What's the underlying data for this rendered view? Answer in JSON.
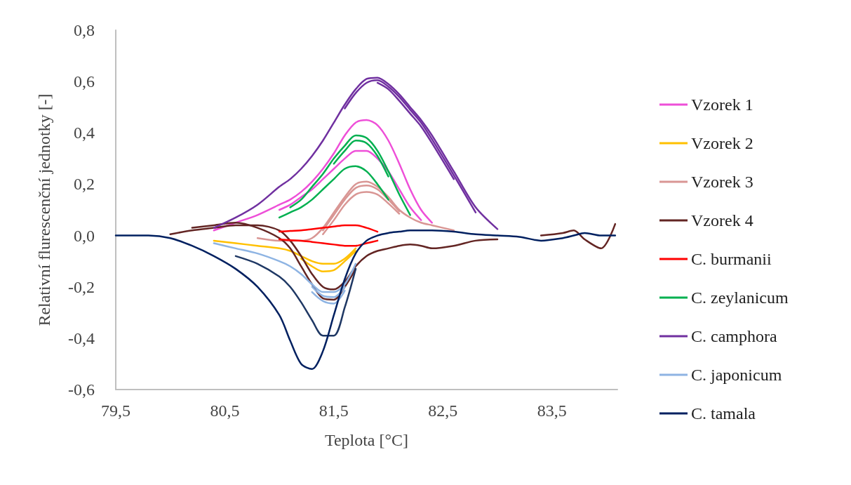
{
  "chart_data": {
    "type": "line",
    "xlabel": "Teplota [°C]",
    "ylabel": "Relativní flurescenční jednotky [-]",
    "xlim": [
      79.5,
      84.1
    ],
    "xticks": [
      {
        "value": 79.5,
        "label": "79,5"
      },
      {
        "value": 80.5,
        "label": "80,5"
      },
      {
        "value": 81.5,
        "label": "81,5"
      },
      {
        "value": 82.5,
        "label": "82,5"
      },
      {
        "value": 83.5,
        "label": "83,5"
      }
    ],
    "ylim": [
      -0.6,
      0.8
    ],
    "yticks": [
      {
        "value": -0.6,
        "label": "-0,6"
      },
      {
        "value": -0.4,
        "label": "-0,4"
      },
      {
        "value": -0.2,
        "label": "-0,2"
      },
      {
        "value": 0,
        "label": "0,0"
      },
      {
        "value": 0.2,
        "label": "0,2"
      },
      {
        "value": 0.4,
        "label": "0,4"
      },
      {
        "value": 0.6,
        "label": "0,6"
      },
      {
        "value": 0.8,
        "label": "0,8"
      }
    ],
    "grid": false,
    "legend": "right",
    "marker": "none",
    "line_style": "solid",
    "x": [
      79.5,
      79.8,
      80.0,
      80.2,
      80.4,
      80.6,
      80.8,
      81.0,
      81.1,
      81.2,
      81.3,
      81.4,
      81.5,
      81.6,
      81.7,
      81.8,
      81.9,
      82.0,
      82.1,
      82.2,
      82.3,
      82.4,
      82.6,
      82.8,
      83.0,
      83.2,
      83.4,
      83.6,
      83.7,
      83.8,
      83.95,
      84.08
    ],
    "series": [
      {
        "name": "Vzorek 1",
        "color": "#ee4fd8",
        "values": [
          null,
          null,
          null,
          null,
          0.02,
          0.05,
          0.08,
          0.12,
          0.14,
          0.17,
          0.21,
          0.26,
          0.32,
          0.39,
          0.44,
          0.45,
          0.43,
          0.37,
          0.28,
          0.18,
          0.1,
          0.05,
          null,
          null,
          null,
          null,
          null,
          null,
          null,
          null,
          null,
          null
        ]
      },
      {
        "color": "#ee4fd8",
        "values": [
          null,
          null,
          null,
          null,
          null,
          null,
          null,
          0.1,
          0.12,
          0.15,
          0.18,
          0.22,
          0.26,
          0.3,
          0.33,
          0.33,
          0.3,
          0.25,
          0.18,
          0.11,
          0.06,
          null,
          null,
          null,
          null,
          null,
          null,
          null,
          null,
          null,
          null,
          null
        ]
      },
      {
        "name": "Vzorek 2",
        "color": "#ffc000",
        "values": [
          null,
          null,
          null,
          null,
          -0.02,
          -0.03,
          -0.04,
          -0.05,
          -0.06,
          -0.08,
          -0.1,
          -0.11,
          -0.11,
          -0.09,
          -0.05,
          null,
          null,
          null,
          null,
          null,
          null,
          null,
          null,
          null,
          null,
          null,
          null,
          null,
          null,
          null,
          null,
          null
        ]
      },
      {
        "color": "#ffc000",
        "values": [
          null,
          null,
          null,
          null,
          null,
          null,
          null,
          null,
          null,
          -0.09,
          -0.12,
          -0.14,
          -0.135,
          -0.1,
          -0.06,
          null,
          null,
          null,
          null,
          null,
          null,
          null,
          null,
          null,
          null,
          null,
          null,
          null,
          null,
          null,
          null,
          null
        ]
      },
      {
        "name": "Vzorek 3",
        "color": "#d99694",
        "values": [
          null,
          null,
          null,
          null,
          null,
          null,
          -0.01,
          -0.02,
          -0.02,
          -0.02,
          -0.01,
          0.03,
          0.09,
          0.15,
          0.2,
          0.21,
          0.19,
          0.15,
          0.1,
          0.07,
          0.05,
          0.04,
          0.02,
          null,
          null,
          null,
          null,
          null,
          null,
          null,
          null,
          null
        ]
      },
      {
        "color": "#d99694",
        "values": [
          null,
          null,
          null,
          null,
          null,
          null,
          null,
          null,
          null,
          null,
          null,
          0.02,
          0.08,
          0.14,
          0.185,
          0.195,
          0.18,
          0.14,
          0.095,
          null,
          null,
          null,
          null,
          null,
          null,
          null,
          null,
          null,
          null,
          null,
          null,
          null
        ]
      },
      {
        "color": "#d99694",
        "values": [
          null,
          null,
          null,
          null,
          null,
          null,
          null,
          null,
          null,
          null,
          null,
          0.005,
          0.06,
          0.12,
          0.16,
          0.17,
          0.16,
          0.125,
          0.085,
          null,
          null,
          null,
          null,
          null,
          null,
          null,
          null,
          null,
          null,
          null,
          null,
          null
        ]
      },
      {
        "name": "Vzorek 4",
        "color": "#632523",
        "values": [
          null,
          null,
          0.005,
          0.02,
          0.03,
          0.04,
          0.04,
          0.02,
          -0.02,
          -0.08,
          -0.15,
          -0.2,
          -0.21,
          -0.18,
          -0.12,
          -0.08,
          -0.06,
          -0.05,
          -0.04,
          -0.035,
          -0.04,
          -0.05,
          -0.04,
          -0.02,
          -0.015,
          null,
          0,
          0.01,
          0.02,
          -0.015,
          -0.05,
          0.045
        ]
      },
      {
        "color": "#632523",
        "values": [
          null,
          null,
          null,
          0.03,
          0.04,
          0.05,
          0.03,
          -0.01,
          -0.05,
          -0.12,
          -0.19,
          -0.245,
          -0.25,
          -0.2,
          -0.13,
          null,
          null,
          null,
          null,
          null,
          null,
          null,
          null,
          null,
          null,
          null,
          null,
          null,
          null,
          null,
          null,
          null
        ]
      },
      {
        "name": "C. burmanii",
        "color": "#ff0000",
        "values": [
          null,
          null,
          null,
          null,
          null,
          null,
          null,
          0.015,
          0.018,
          0.02,
          0.025,
          0.03,
          0.035,
          0.04,
          0.04,
          0.03,
          0.015,
          null,
          null,
          null,
          null,
          null,
          null,
          null,
          null,
          null,
          null,
          null,
          null,
          null,
          null,
          null
        ]
      },
      {
        "color": "#ff0000",
        "values": [
          null,
          null,
          null,
          null,
          null,
          null,
          null,
          -0.015,
          -0.018,
          -0.02,
          -0.025,
          -0.03,
          -0.035,
          -0.04,
          -0.04,
          -0.03,
          -0.02,
          null,
          null,
          null,
          null,
          null,
          null,
          null,
          null,
          null,
          null,
          null,
          null,
          null,
          null,
          null
        ]
      },
      {
        "name": "C. zeylanicum",
        "color": "#00b050",
        "values": [
          null,
          null,
          null,
          null,
          null,
          null,
          null,
          null,
          0.11,
          0.14,
          0.19,
          0.24,
          0.3,
          0.35,
          0.39,
          0.38,
          0.33,
          0.25,
          0.16,
          0.08,
          null,
          null,
          null,
          null,
          null,
          null,
          null,
          null,
          null,
          null,
          null,
          null
        ]
      },
      {
        "color": "#00b050",
        "values": [
          null,
          null,
          null,
          null,
          null,
          null,
          null,
          null,
          null,
          null,
          null,
          null,
          0.28,
          0.33,
          0.37,
          0.36,
          0.31,
          0.23,
          null,
          null,
          null,
          null,
          null,
          null,
          null,
          null,
          null,
          null,
          null,
          null,
          null,
          null
        ]
      },
      {
        "color": "#00b050",
        "values": [
          null,
          null,
          null,
          null,
          null,
          null,
          null,
          0.07,
          0.09,
          0.11,
          0.14,
          0.18,
          0.22,
          0.26,
          0.27,
          0.25,
          0.2,
          0.14,
          null,
          null,
          null,
          null,
          null,
          null,
          null,
          null,
          null,
          null,
          null,
          null,
          null,
          null
        ]
      },
      {
        "name": "C. camphora",
        "color": "#7030a0",
        "values": [
          null,
          null,
          null,
          null,
          0.03,
          0.07,
          0.12,
          0.19,
          0.22,
          0.26,
          0.31,
          0.37,
          0.44,
          0.51,
          0.57,
          0.61,
          0.615,
          0.59,
          0.55,
          0.5,
          0.45,
          0.39,
          0.25,
          0.11,
          0.025,
          null,
          null,
          null,
          null,
          null,
          null,
          null
        ]
      },
      {
        "color": "#7030a0",
        "values": [
          null,
          null,
          null,
          null,
          null,
          null,
          null,
          null,
          null,
          null,
          null,
          null,
          null,
          0.495,
          0.555,
          0.595,
          0.605,
          0.58,
          0.54,
          0.49,
          0.44,
          0.375,
          0.235,
          0.09,
          null,
          null,
          null,
          null,
          null,
          null,
          null,
          null
        ]
      },
      {
        "color": "#7030a0",
        "values": [
          null,
          null,
          null,
          null,
          null,
          null,
          null,
          null,
          null,
          null,
          null,
          null,
          null,
          null,
          null,
          null,
          0.595,
          0.57,
          0.525,
          0.475,
          0.425,
          0.36,
          0.22,
          null,
          null,
          null,
          null,
          null,
          null,
          null,
          null,
          null
        ]
      },
      {
        "name": "C. japonicum",
        "color": "#8eb4e3",
        "values": [
          null,
          null,
          null,
          null,
          -0.03,
          -0.05,
          -0.07,
          -0.1,
          -0.12,
          -0.15,
          -0.19,
          -0.22,
          -0.22,
          -0.19,
          -0.11,
          null,
          null,
          null,
          null,
          null,
          null,
          null,
          null,
          null,
          null,
          null,
          null,
          null,
          null,
          null,
          null,
          null
        ]
      },
      {
        "color": "#8eb4e3",
        "values": [
          null,
          null,
          null,
          null,
          null,
          null,
          null,
          null,
          null,
          null,
          -0.2,
          -0.235,
          -0.24,
          -0.2,
          null,
          null,
          null,
          null,
          null,
          null,
          null,
          null,
          null,
          null,
          null,
          null,
          null,
          null,
          null,
          null,
          null,
          null
        ]
      },
      {
        "color": "#8eb4e3",
        "values": [
          null,
          null,
          null,
          null,
          null,
          null,
          null,
          null,
          null,
          null,
          -0.22,
          -0.255,
          -0.265,
          -0.215,
          null,
          null,
          null,
          null,
          null,
          null,
          null,
          null,
          null,
          null,
          null,
          null,
          null,
          null,
          null,
          null,
          null,
          null
        ]
      },
      {
        "color": "#1f3864",
        "values": [
          null,
          null,
          null,
          null,
          null,
          -0.08,
          -0.11,
          -0.16,
          -0.2,
          -0.26,
          -0.33,
          -0.39,
          -0.39,
          -0.28,
          -0.13,
          null,
          null,
          null,
          null,
          null,
          null,
          null,
          null,
          null,
          null,
          null,
          null,
          null,
          null,
          null,
          null,
          null
        ]
      },
      {
        "name": "C. tamala",
        "color": "#002060",
        "values": [
          0,
          0,
          -0.01,
          -0.04,
          -0.08,
          -0.13,
          -0.2,
          -0.31,
          -0.41,
          -0.5,
          -0.52,
          -0.45,
          -0.31,
          -0.17,
          -0.07,
          -0.02,
          0,
          0.01,
          0.015,
          0.02,
          0.02,
          0.02,
          0.015,
          0.005,
          0,
          -0.005,
          -0.02,
          -0.01,
          0,
          0.01,
          0,
          0
        ]
      }
    ]
  }
}
